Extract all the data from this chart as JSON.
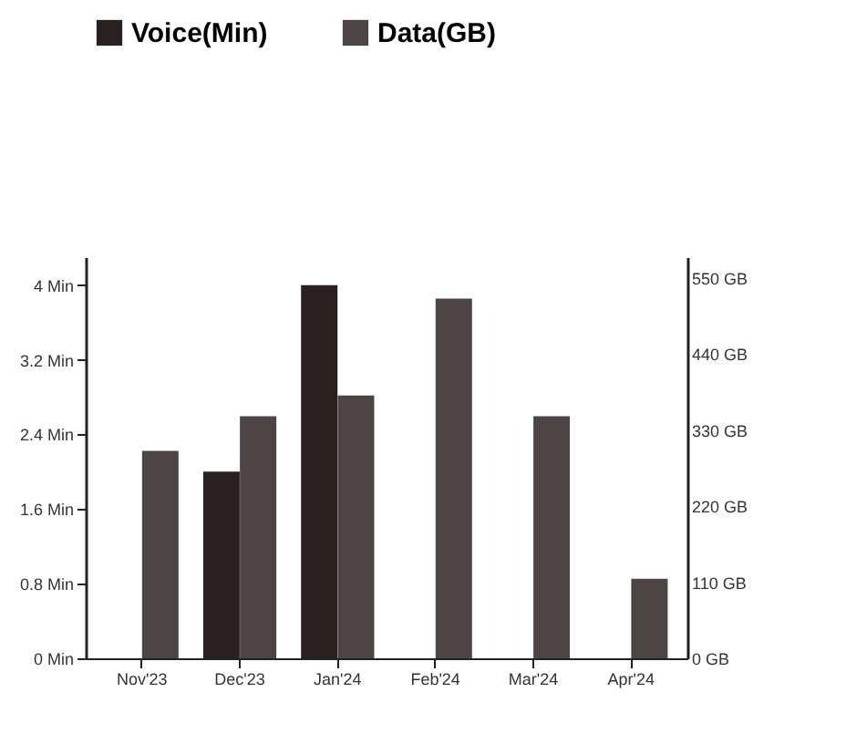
{
  "chart_data": {
    "type": "bar",
    "categories": [
      "Nov'23",
      "Dec'23",
      "Jan'24",
      "Feb'24",
      "Mar'24",
      "Apr'24"
    ],
    "series": [
      {
        "name": "Voice(Min)",
        "color": "#2b2020",
        "values": [
          null,
          2.0,
          4.0,
          null,
          null,
          null
        ]
      },
      {
        "name": "Data(GB)",
        "color": "#4d4444",
        "axis": "y2",
        "values": [
          300,
          350,
          380,
          520,
          350,
          115
        ]
      }
    ],
    "ylim": [
      0,
      4.3
    ],
    "yticks": [
      {
        "value": 0,
        "label": "0 Min"
      },
      {
        "value": 0.8,
        "label": "0.8 Min"
      },
      {
        "value": 1.6,
        "label": "1.6 Min"
      },
      {
        "value": 2.4,
        "label": "2.4 Min"
      },
      {
        "value": 3.2,
        "label": "3.2 Min"
      },
      {
        "value": 4,
        "label": "4 Min"
      }
    ],
    "y2lim": [
      0,
      580
    ],
    "y2ticks": [
      {
        "value": 0,
        "label": "0 GB"
      },
      {
        "value": 110,
        "label": "110 GB"
      },
      {
        "value": 220,
        "label": "220 GB"
      },
      {
        "value": 330,
        "label": "330 GB"
      },
      {
        "value": 440,
        "label": "440 GB"
      },
      {
        "value": 550,
        "label": "550 GB"
      }
    ],
    "legend": "top",
    "grid": false
  }
}
